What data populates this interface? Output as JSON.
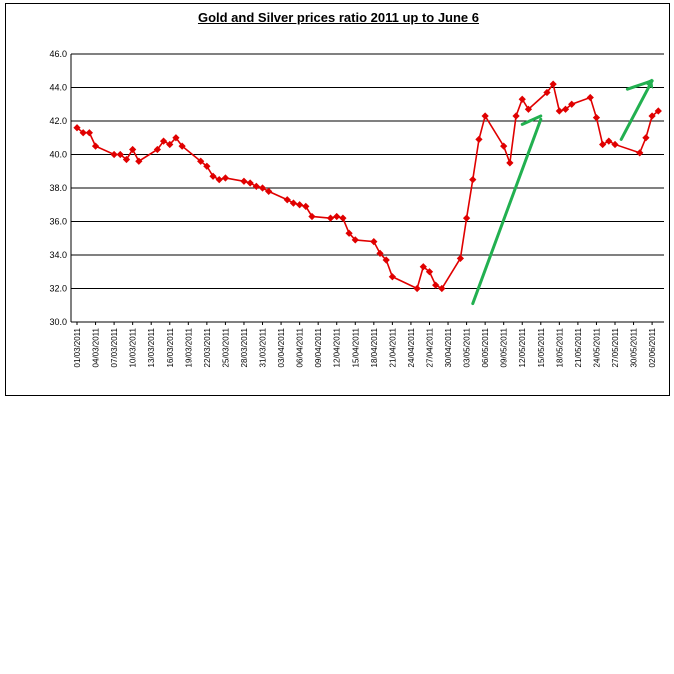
{
  "chart_data": {
    "type": "line",
    "title": "Gold and Silver prices ratio 2011 up to June 6",
    "xlabel": "",
    "ylabel": "",
    "ylim": [
      30.0,
      46.0
    ],
    "yticks": [
      "30.0",
      "32.0",
      "34.0",
      "36.0",
      "38.0",
      "40.0",
      "42.0",
      "44.0",
      "46.0"
    ],
    "grid": true,
    "legend": "none",
    "x_tick_labels": [
      "01/03/2011",
      "04/03/2011",
      "07/03/2011",
      "10/03/2011",
      "13/03/2011",
      "16/03/2011",
      "19/03/2011",
      "22/03/2011",
      "25/03/2011",
      "28/03/2011",
      "31/03/2011",
      "03/04/2011",
      "06/04/2011",
      "09/04/2011",
      "12/04/2011",
      "15/04/2011",
      "18/04/2011",
      "21/04/2011",
      "24/04/2011",
      "27/04/2011",
      "30/04/2011",
      "03/05/2011",
      "06/05/2011",
      "09/05/2011",
      "12/05/2011",
      "15/05/2011",
      "18/05/2011",
      "21/05/2011",
      "24/05/2011",
      "27/05/2011",
      "30/05/2011",
      "02/06/2011"
    ],
    "series": [
      {
        "color": "#e00000",
        "marker": "diamond",
        "points": [
          [
            "01/03/2011",
            41.6
          ],
          [
            "02/03/2011",
            41.3
          ],
          [
            "03/03/2011",
            41.3
          ],
          [
            "04/03/2011",
            40.5
          ],
          [
            "07/03/2011",
            40.0
          ],
          [
            "08/03/2011",
            40.0
          ],
          [
            "09/03/2011",
            39.7
          ],
          [
            "10/03/2011",
            40.3
          ],
          [
            "11/03/2011",
            39.6
          ],
          [
            "14/03/2011",
            40.3
          ],
          [
            "15/03/2011",
            40.8
          ],
          [
            "16/03/2011",
            40.6
          ],
          [
            "17/03/2011",
            41.0
          ],
          [
            "18/03/2011",
            40.5
          ],
          [
            "21/03/2011",
            39.6
          ],
          [
            "22/03/2011",
            39.3
          ],
          [
            "23/03/2011",
            38.7
          ],
          [
            "24/03/2011",
            38.5
          ],
          [
            "25/03/2011",
            38.6
          ],
          [
            "28/03/2011",
            38.4
          ],
          [
            "29/03/2011",
            38.3
          ],
          [
            "30/03/2011",
            38.1
          ],
          [
            "31/03/2011",
            38.0
          ],
          [
            "01/04/2011",
            37.8
          ],
          [
            "04/04/2011",
            37.3
          ],
          [
            "05/04/2011",
            37.1
          ],
          [
            "06/04/2011",
            37.0
          ],
          [
            "07/04/2011",
            36.9
          ],
          [
            "08/04/2011",
            36.3
          ],
          [
            "11/04/2011",
            36.2
          ],
          [
            "12/04/2011",
            36.3
          ],
          [
            "13/04/2011",
            36.2
          ],
          [
            "14/04/2011",
            35.3
          ],
          [
            "15/04/2011",
            34.9
          ],
          [
            "18/04/2011",
            34.8
          ],
          [
            "19/04/2011",
            34.1
          ],
          [
            "20/04/2011",
            33.7
          ],
          [
            "21/04/2011",
            32.7
          ],
          [
            "25/04/2011",
            32.0
          ],
          [
            "26/04/2011",
            33.3
          ],
          [
            "27/04/2011",
            33.0
          ],
          [
            "28/04/2011",
            32.2
          ],
          [
            "29/04/2011",
            32.0
          ],
          [
            "02/05/2011",
            33.8
          ],
          [
            "03/05/2011",
            36.2
          ],
          [
            "04/05/2011",
            38.5
          ],
          [
            "05/05/2011",
            40.9
          ],
          [
            "06/05/2011",
            42.3
          ],
          [
            "09/05/2011",
            40.5
          ],
          [
            "10/05/2011",
            39.5
          ],
          [
            "11/05/2011",
            42.3
          ],
          [
            "12/05/2011",
            43.3
          ],
          [
            "13/05/2011",
            42.7
          ],
          [
            "16/05/2011",
            43.7
          ],
          [
            "17/05/2011",
            44.2
          ],
          [
            "18/05/2011",
            42.6
          ],
          [
            "19/05/2011",
            42.7
          ],
          [
            "20/05/2011",
            43.0
          ],
          [
            "23/05/2011",
            43.4
          ],
          [
            "24/05/2011",
            42.2
          ],
          [
            "25/05/2011",
            40.6
          ],
          [
            "26/05/2011",
            40.8
          ],
          [
            "27/05/2011",
            40.6
          ],
          [
            "31/05/2011",
            40.1
          ],
          [
            "01/06/2011",
            41.0
          ],
          [
            "02/06/2011",
            42.3
          ],
          [
            "03/06/2011",
            42.6
          ]
        ]
      }
    ],
    "annotations": [
      {
        "type": "arrow",
        "color": "#22b050",
        "from": [
          "04/05/2011",
          31.1
        ],
        "to": [
          "15/05/2011",
          42.1
        ]
      },
      {
        "type": "arrow",
        "color": "#22b050",
        "from": [
          "12/05/2011",
          41.8
        ],
        "to": [
          "15/05/2011",
          42.3
        ]
      },
      {
        "type": "arrow",
        "color": "#22b050",
        "from": [
          "28/05/2011",
          40.9
        ],
        "to": [
          "02/06/2011",
          44.4
        ]
      },
      {
        "type": "arrow",
        "color": "#22b050",
        "from": [
          "29/05/2011",
          43.9
        ],
        "to": [
          "02/06/2011",
          44.4
        ]
      }
    ]
  }
}
